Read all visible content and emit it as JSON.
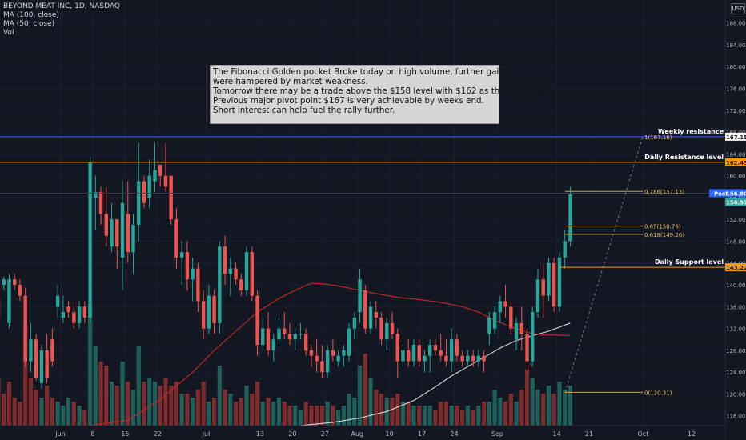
{
  "legend": {
    "symbol": "BEYOND MEAT INC, 1D, NASDAQ",
    "ma100": "MA (100, close)",
    "ma50": "MA (50, close)",
    "vol": "Vol"
  },
  "currency": "USD",
  "note_lines": [
    "The Fibonacci Golden pocket Broke today on high volume,  further gains",
    "were hampered by market weakness.",
    "Tomorrow there may be a trade above the $158 level with $162 as the first target.",
    "Previous major pivot point $167 is very achievable by weeks end.",
    "Short interest can help fuel the rally further."
  ],
  "levels": {
    "weekly_resistance": {
      "label": "Weekly resistance",
      "price": 167.15,
      "tag": "167.15",
      "color": "#3d5afe"
    },
    "daily_resistance": {
      "label": "Daily Resistance level",
      "price": 162.45,
      "tag": "162.45",
      "color": "#ff9800"
    },
    "daily_support": {
      "label": "Daily Support level",
      "price": 143.22,
      "tag": "143.22",
      "color": "#ff9800"
    }
  },
  "price_tags": {
    "post": {
      "label": "Post",
      "value": "156.80",
      "color": "#2962ff"
    },
    "last": {
      "value": "156.57",
      "color": "#26a69a"
    }
  },
  "fib_labels": [
    {
      "text": "1(167.16)",
      "price": 167.16
    },
    {
      "text": "0.786(157.13)",
      "price": 157.13
    },
    {
      "text": "0.65(150.76)",
      "price": 150.76
    },
    {
      "text": "0.618(149.26)",
      "price": 149.26
    },
    {
      "text": "0(120.31)",
      "price": 120.31
    }
  ],
  "chart_data": {
    "type": "candlestick",
    "yaxis": {
      "ticks": [
        116,
        120,
        124,
        128,
        132,
        136,
        140,
        144,
        148,
        152,
        156,
        160,
        164,
        168,
        172,
        176,
        180,
        184,
        188
      ],
      "ylim": [
        114.2,
        192.2
      ],
      "position": "right"
    },
    "xaxis": {
      "ticks": [
        {
          "label": "Jun",
          "bar": 11.5
        },
        {
          "label": "8",
          "bar": 17.5
        },
        {
          "label": "15",
          "bar": 23.5
        },
        {
          "label": "22",
          "bar": 29.5
        },
        {
          "label": "Jul",
          "bar": 38.5
        },
        {
          "label": "13",
          "bar": 48.5
        },
        {
          "label": "20",
          "bar": 54.5
        },
        {
          "label": "27",
          "bar": 60.5
        },
        {
          "label": "Aug",
          "bar": 66.5
        },
        {
          "label": "10",
          "bar": 72.5
        },
        {
          "label": "17",
          "bar": 78.5
        },
        {
          "label": "24",
          "bar": 84.5
        },
        {
          "label": "Sep",
          "bar": 92.5
        },
        {
          "label": "14",
          "bar": 103.5
        },
        {
          "label": "21",
          "bar": 109.5
        },
        {
          "label": "Oct",
          "bar": 119.5
        },
        {
          "label": "12",
          "bar": 128.5
        }
      ]
    },
    "candles": [
      [
        137.5,
        140,
        133,
        134
      ],
      [
        140,
        141.5,
        139,
        141
      ],
      [
        133,
        142,
        132,
        141
      ],
      [
        141,
        142,
        139,
        140
      ],
      [
        140,
        141,
        137,
        138
      ],
      [
        138,
        139.5,
        125,
        126
      ],
      [
        126,
        133,
        124,
        130
      ],
      [
        130,
        131,
        122.5,
        123
      ],
      [
        122,
        129,
        121,
        128
      ],
      [
        128,
        131,
        122,
        123
      ],
      [
        130,
        132,
        125,
        126
      ],
      [
        136,
        140,
        134,
        138
      ],
      [
        134,
        138,
        133,
        135
      ],
      [
        136,
        137,
        134,
        135
      ],
      [
        135,
        137,
        132,
        133
      ],
      [
        133,
        137,
        132,
        136
      ],
      [
        136,
        137,
        133,
        134
      ],
      [
        134,
        163.5,
        133,
        162.5
      ],
      [
        156,
        160,
        150,
        157
      ],
      [
        157,
        158,
        151,
        153
      ],
      [
        153,
        158,
        147,
        149
      ],
      [
        147,
        155,
        146,
        152
      ],
      [
        152,
        152,
        143,
        147
      ],
      [
        145,
        159,
        139,
        155
      ],
      [
        153,
        159,
        144,
        146
      ],
      [
        146,
        153,
        142,
        151
      ],
      [
        151,
        166,
        148,
        159
      ],
      [
        159,
        160,
        154,
        155
      ],
      [
        156,
        163,
        154,
        160
      ],
      [
        159,
        166,
        157,
        161
      ],
      [
        162,
        162,
        158,
        160
      ],
      [
        160,
        166,
        157,
        158
      ],
      [
        160,
        160,
        151,
        152
      ],
      [
        152,
        154,
        143,
        145
      ],
      [
        145,
        148,
        140,
        146
      ],
      [
        146,
        148,
        139,
        141
      ],
      [
        141,
        145,
        137,
        143
      ],
      [
        143,
        144,
        135,
        137
      ],
      [
        137,
        139,
        130,
        132
      ],
      [
        132,
        140,
        131,
        138
      ],
      [
        138,
        139,
        131,
        133
      ],
      [
        133,
        148,
        131,
        147
      ],
      [
        147,
        149,
        140,
        142
      ],
      [
        142,
        145,
        138,
        143
      ],
      [
        143,
        144,
        140,
        141
      ],
      [
        141,
        142,
        138,
        139
      ],
      [
        139,
        147,
        138,
        146
      ],
      [
        146,
        147,
        137,
        138
      ],
      [
        138,
        139,
        127,
        129
      ],
      [
        129,
        134,
        128,
        132
      ],
      [
        132,
        135,
        127,
        128
      ],
      [
        128,
        131,
        126,
        130
      ],
      [
        130,
        134,
        129,
        132
      ],
      [
        132,
        135,
        130,
        131
      ],
      [
        131,
        133,
        129,
        130
      ],
      [
        130,
        132,
        128,
        131
      ],
      [
        131,
        133,
        130,
        131
      ],
      [
        131,
        132,
        127,
        128
      ],
      [
        128,
        129,
        125,
        127
      ],
      [
        127,
        130,
        124,
        126
      ],
      [
        126,
        129,
        123,
        124
      ],
      [
        124,
        129,
        123,
        128
      ],
      [
        128,
        130,
        126,
        127
      ],
      [
        126,
        128,
        125,
        127
      ],
      [
        127,
        129,
        125,
        128
      ],
      [
        127,
        133,
        126,
        132
      ],
      [
        132,
        135,
        130,
        134
      ],
      [
        135,
        143,
        133,
        141
      ],
      [
        139,
        140,
        131,
        132
      ],
      [
        132,
        137,
        131,
        136
      ],
      [
        135,
        137,
        132,
        134
      ],
      [
        134,
        135,
        129,
        130
      ],
      [
        130,
        134,
        128,
        133
      ],
      [
        133,
        135,
        130,
        131
      ],
      [
        131,
        132,
        123,
        126
      ],
      [
        126,
        129,
        125,
        128
      ],
      [
        128,
        130,
        125,
        126
      ],
      [
        126,
        130,
        125,
        129
      ],
      [
        129,
        130,
        125,
        126
      ],
      [
        126,
        128,
        124,
        127
      ],
      [
        127,
        130,
        124,
        129
      ],
      [
        129,
        130,
        127,
        128
      ],
      [
        128,
        131,
        126,
        127
      ],
      [
        127,
        130,
        125,
        126
      ],
      [
        126,
        132,
        124,
        130
      ],
      [
        130,
        131,
        126,
        127
      ],
      [
        127,
        128,
        125,
        126
      ],
      [
        126,
        128,
        125,
        127
      ],
      [
        127,
        128,
        125,
        126
      ],
      [
        126,
        128,
        125,
        127
      ],
      [
        127,
        128,
        124,
        126
      ],
      [
        131,
        135,
        129,
        134
      ],
      [
        132,
        136,
        131,
        135
      ],
      [
        135,
        138,
        133,
        137
      ],
      [
        137,
        140,
        134,
        136
      ],
      [
        136,
        137,
        131,
        132
      ],
      [
        130,
        134,
        128,
        133
      ],
      [
        133,
        136,
        128,
        131
      ],
      [
        131,
        132,
        124,
        126
      ],
      [
        126,
        136,
        125,
        135
      ],
      [
        135,
        143,
        134,
        141
      ],
      [
        141,
        144,
        134,
        138
      ],
      [
        138,
        145,
        137,
        144
      ],
      [
        144,
        145,
        135,
        136
      ],
      [
        136,
        146,
        135,
        145
      ],
      [
        145,
        150,
        143,
        148
      ],
      [
        148,
        158,
        147,
        156.57
      ]
    ],
    "volume": [
      [
        12,
        0
      ],
      [
        8,
        0
      ],
      [
        11,
        0
      ],
      [
        7,
        0
      ],
      [
        6,
        0
      ],
      [
        25,
        0
      ],
      [
        12,
        0
      ],
      [
        9,
        0
      ],
      [
        7,
        1
      ],
      [
        10,
        0
      ],
      [
        7,
        0
      ],
      [
        6,
        1
      ],
      [
        5,
        1
      ],
      [
        7,
        1
      ],
      [
        6,
        0
      ],
      [
        5,
        1
      ],
      [
        4,
        0
      ],
      [
        30,
        1
      ],
      [
        20,
        1
      ],
      [
        16,
        0
      ],
      [
        15,
        0
      ],
      [
        11,
        1
      ],
      [
        10,
        0
      ],
      [
        16,
        1
      ],
      [
        11,
        0
      ],
      [
        9,
        1
      ],
      [
        20,
        1
      ],
      [
        11,
        0
      ],
      [
        12,
        1
      ],
      [
        11,
        1
      ],
      [
        10,
        0
      ],
      [
        12,
        0
      ],
      [
        10,
        0
      ],
      [
        11,
        0
      ],
      [
        8,
        1
      ],
      [
        8,
        0
      ],
      [
        7,
        1
      ],
      [
        9,
        0
      ],
      [
        11,
        0
      ],
      [
        6,
        1
      ],
      [
        7,
        0
      ],
      [
        15,
        1
      ],
      [
        9,
        0
      ],
      [
        8,
        1
      ],
      [
        6,
        0
      ],
      [
        7,
        0
      ],
      [
        10,
        1
      ],
      [
        8,
        0
      ],
      [
        11,
        0
      ],
      [
        6,
        1
      ],
      [
        7,
        0
      ],
      [
        6,
        1
      ],
      [
        7,
        1
      ],
      [
        6,
        0
      ],
      [
        5,
        0
      ],
      [
        5,
        1
      ],
      [
        4,
        1
      ],
      [
        6,
        0
      ],
      [
        5,
        0
      ],
      [
        5,
        0
      ],
      [
        5,
        0
      ],
      [
        6,
        1
      ],
      [
        5,
        0
      ],
      [
        4,
        1
      ],
      [
        5,
        1
      ],
      [
        8,
        1
      ],
      [
        7,
        1
      ],
      [
        15,
        1
      ],
      [
        18,
        0
      ],
      [
        12,
        1
      ],
      [
        9,
        0
      ],
      [
        8,
        0
      ],
      [
        7,
        1
      ],
      [
        7,
        0
      ],
      [
        8,
        0
      ],
      [
        6,
        1
      ],
      [
        6,
        0
      ],
      [
        5,
        1
      ],
      [
        5,
        0
      ],
      [
        5,
        1
      ],
      [
        5,
        1
      ],
      [
        4,
        0
      ],
      [
        6,
        0
      ],
      [
        6,
        0
      ],
      [
        5,
        1
      ],
      [
        5,
        0
      ],
      [
        4,
        0
      ],
      [
        5,
        1
      ],
      [
        4,
        0
      ],
      [
        5,
        1
      ],
      [
        6,
        0
      ],
      [
        6,
        1
      ],
      [
        9,
        1
      ],
      [
        7,
        1
      ],
      [
        6,
        0
      ],
      [
        8,
        0
      ],
      [
        6,
        1
      ],
      [
        9,
        0
      ],
      [
        14,
        0
      ],
      [
        12,
        1
      ],
      [
        9,
        1
      ],
      [
        8,
        0
      ],
      [
        10,
        1
      ],
      [
        8,
        0
      ],
      [
        11,
        1
      ],
      [
        9,
        1
      ],
      [
        10,
        1
      ]
    ],
    "ma50": [
      [
        17,
        114.2
      ],
      [
        24,
        115.2
      ],
      [
        30,
        119
      ],
      [
        36,
        124
      ],
      [
        40,
        128
      ],
      [
        44,
        131.5
      ],
      [
        48,
        135
      ],
      [
        52,
        137.5
      ],
      [
        55,
        139
      ],
      [
        58,
        140.3
      ],
      [
        60,
        140.2
      ],
      [
        63,
        139.8
      ],
      [
        66,
        139.2
      ],
      [
        70,
        138.4
      ],
      [
        74,
        137.7
      ],
      [
        78,
        137.3
      ],
      [
        82,
        136.8
      ],
      [
        86,
        136
      ],
      [
        89,
        135
      ],
      [
        92,
        133.5
      ],
      [
        95,
        132.3
      ],
      [
        98,
        131.3
      ],
      [
        101,
        130.8
      ],
      [
        104,
        130.8
      ],
      [
        106,
        130.7
      ]
    ],
    "ma100": [
      [
        56,
        114.2
      ],
      [
        62,
        114.8
      ],
      [
        67,
        115.6
      ],
      [
        72,
        116.8
      ],
      [
        77,
        118.8
      ],
      [
        81,
        121.3
      ],
      [
        84,
        123.3
      ],
      [
        87,
        125
      ],
      [
        90,
        126.7
      ],
      [
        93,
        128.4
      ],
      [
        96,
        129.8
      ],
      [
        99,
        130.7
      ],
      [
        102,
        131.5
      ],
      [
        106,
        133
      ]
    ],
    "fib_range": {
      "high": 167.16,
      "low": 120.31
    }
  }
}
